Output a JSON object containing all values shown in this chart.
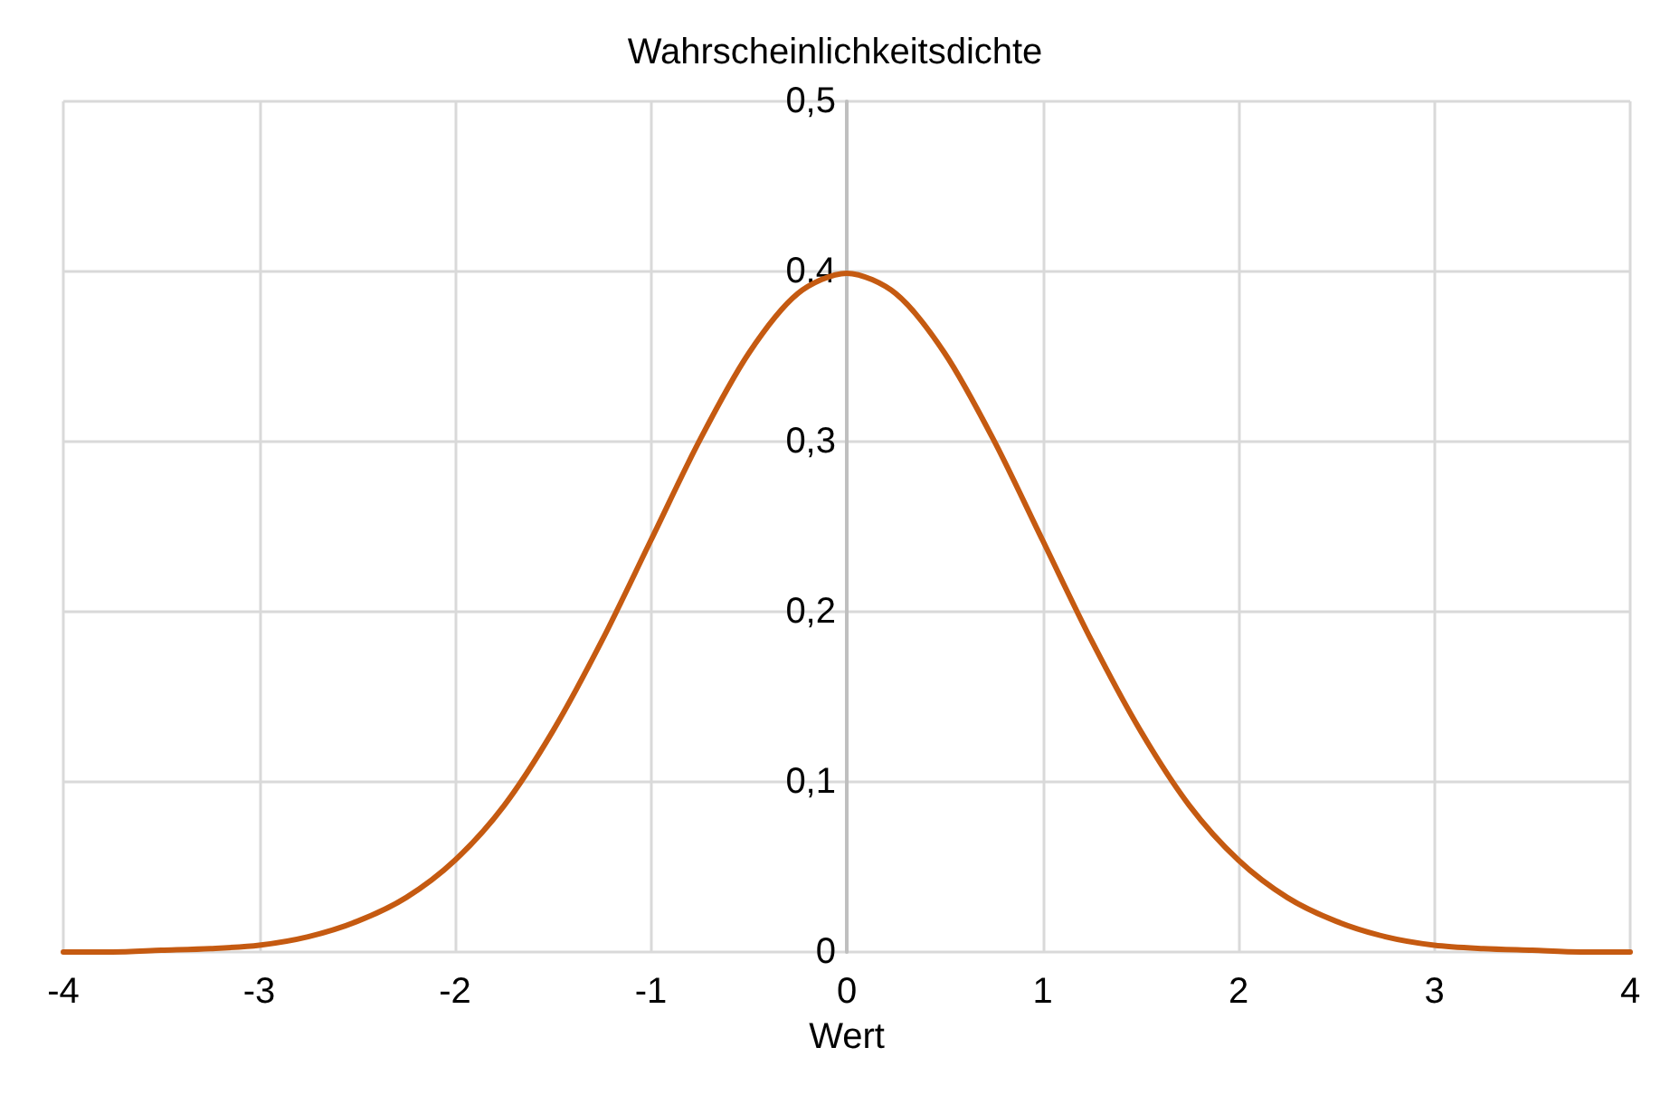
{
  "chart_data": {
    "type": "line",
    "title": "Wahrscheinlichkeitsdichte",
    "xlabel": "Wert",
    "x": [
      -4,
      -3.75,
      -3.5,
      -3.25,
      -3,
      -2.75,
      -2.5,
      -2.25,
      -2,
      -1.75,
      -1.5,
      -1.25,
      -1,
      -0.75,
      -0.5,
      -0.25,
      0,
      0.25,
      0.5,
      0.75,
      1,
      1.25,
      1.5,
      1.75,
      2,
      2.25,
      2.5,
      2.75,
      3,
      3.25,
      3.5,
      3.75,
      4
    ],
    "series": [
      {
        "color": "#c55a11",
        "values": [
          0.0,
          0.0,
          0.001,
          0.002,
          0.004,
          0.009,
          0.018,
          0.032,
          0.054,
          0.086,
          0.13,
          0.183,
          0.242,
          0.301,
          0.352,
          0.387,
          0.399,
          0.387,
          0.352,
          0.301,
          0.242,
          0.183,
          0.13,
          0.086,
          0.054,
          0.032,
          0.018,
          0.009,
          0.004,
          0.002,
          0.001,
          0.0,
          0.0
        ]
      }
    ],
    "xlim": [
      -4,
      4
    ],
    "xticks": [
      -4,
      -3,
      -2,
      -1,
      0,
      1,
      2,
      3,
      4
    ],
    "ylim": [
      0,
      0.5
    ],
    "yticks": [
      0,
      {
        "value": 0.1,
        "label": "0,1"
      },
      {
        "value": 0.2,
        "label": "0,2"
      },
      {
        "value": 0.3,
        "label": "0,3"
      },
      {
        "value": 0.4,
        "label": "0,4"
      },
      {
        "value": 0.5,
        "label": "0,5"
      }
    ],
    "grid": true,
    "marker": "none",
    "line_style": "solid"
  }
}
